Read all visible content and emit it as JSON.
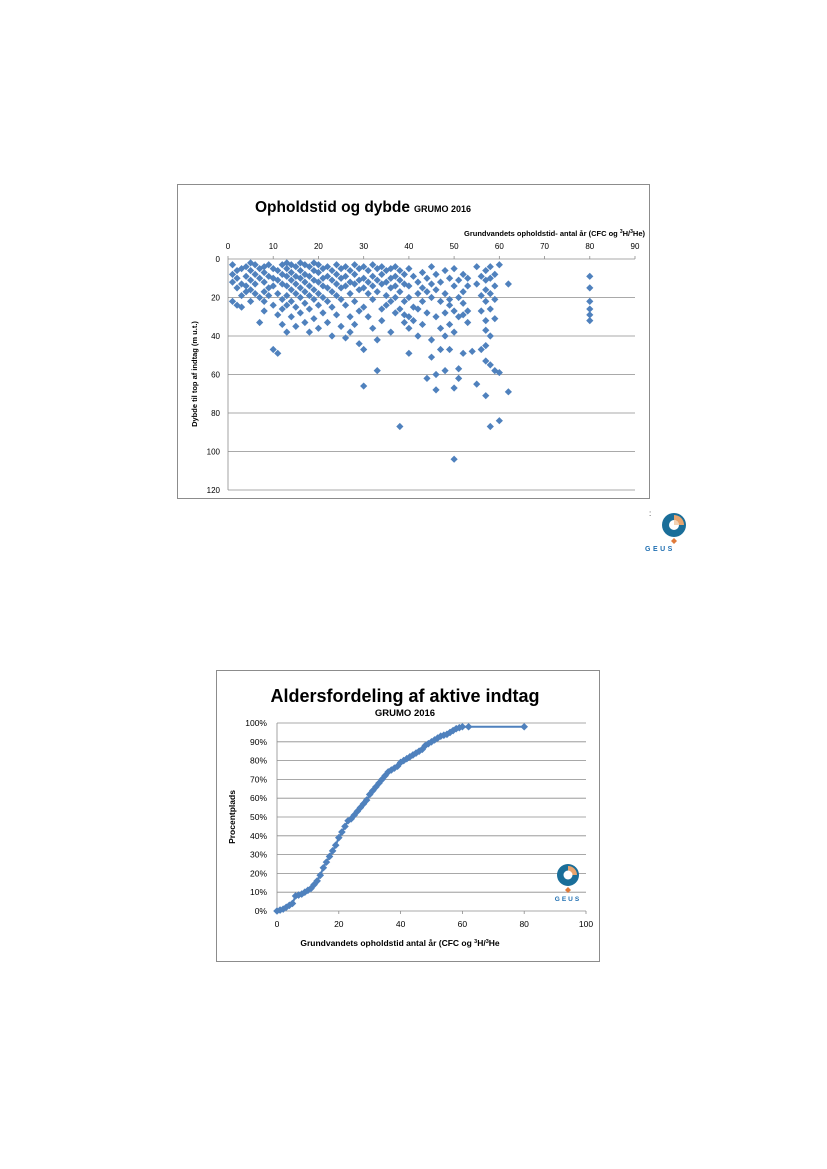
{
  "chart_data": [
    {
      "type": "scatter",
      "title": "Opholdstid og dybde",
      "title_suffix": "GRUMO 2016",
      "xlabel_prefix": "Grundvandets opholdstid- antal år (CFC og ",
      "xlabel_sup1": "3",
      "xlabel_mid": "H/",
      "xlabel_sup2": "3",
      "xlabel_suffix": "He)",
      "ylabel": "Dybde til top af indtag (m u.t.)",
      "xlim": [
        0,
        90
      ],
      "ylim": [
        0,
        120
      ],
      "y_inverted": true,
      "x_axis_position": "top",
      "xticks": [
        "0",
        "10",
        "20",
        "30",
        "40",
        "50",
        "60",
        "70",
        "80",
        "90"
      ],
      "yticks": [
        "0",
        "20",
        "40",
        "60",
        "80",
        "100",
        "120"
      ],
      "grid": "horizontal",
      "marker": "diamond",
      "color": "#4f81bd",
      "points": [
        [
          1,
          3
        ],
        [
          1,
          8
        ],
        [
          1,
          12
        ],
        [
          1,
          22
        ],
        [
          2,
          6
        ],
        [
          2,
          10
        ],
        [
          2,
          15
        ],
        [
          2,
          24
        ],
        [
          3,
          5
        ],
        [
          3,
          13
        ],
        [
          3,
          19
        ],
        [
          3,
          25
        ],
        [
          4,
          4
        ],
        [
          4,
          9
        ],
        [
          4,
          14
        ],
        [
          4,
          17
        ],
        [
          5,
          2
        ],
        [
          5,
          6
        ],
        [
          5,
          11
        ],
        [
          5,
          16
        ],
        [
          5,
          22
        ],
        [
          6,
          3
        ],
        [
          6,
          8
        ],
        [
          6,
          13
        ],
        [
          6,
          18
        ],
        [
          7,
          5
        ],
        [
          7,
          10
        ],
        [
          7,
          20
        ],
        [
          7,
          33
        ],
        [
          8,
          4
        ],
        [
          8,
          7
        ],
        [
          8,
          12
        ],
        [
          8,
          17
        ],
        [
          8,
          22
        ],
        [
          8,
          27
        ],
        [
          9,
          3
        ],
        [
          9,
          9
        ],
        [
          9,
          15
        ],
        [
          9,
          19
        ],
        [
          10,
          5
        ],
        [
          10,
          10
        ],
        [
          10,
          14
        ],
        [
          10,
          24
        ],
        [
          10,
          47
        ],
        [
          11,
          6
        ],
        [
          11,
          11
        ],
        [
          11,
          18
        ],
        [
          11,
          29
        ],
        [
          11,
          49
        ],
        [
          12,
          3
        ],
        [
          12,
          8
        ],
        [
          12,
          13
        ],
        [
          12,
          21
        ],
        [
          12,
          26
        ],
        [
          12,
          34
        ],
        [
          13,
          2
        ],
        [
          13,
          5
        ],
        [
          13,
          9
        ],
        [
          13,
          14
        ],
        [
          13,
          19
        ],
        [
          13,
          24
        ],
        [
          13,
          38
        ],
        [
          14,
          3
        ],
        [
          14,
          7
        ],
        [
          14,
          11
        ],
        [
          14,
          16
        ],
        [
          14,
          22
        ],
        [
          14,
          30
        ],
        [
          15,
          4
        ],
        [
          15,
          9
        ],
        [
          15,
          13
        ],
        [
          15,
          18
        ],
        [
          15,
          25
        ],
        [
          15,
          35
        ],
        [
          16,
          2
        ],
        [
          16,
          6
        ],
        [
          16,
          10
        ],
        [
          16,
          15
        ],
        [
          16,
          20
        ],
        [
          16,
          28
        ],
        [
          17,
          3
        ],
        [
          17,
          8
        ],
        [
          17,
          12
        ],
        [
          17,
          17
        ],
        [
          17,
          23
        ],
        [
          17,
          33
        ],
        [
          18,
          4
        ],
        [
          18,
          9
        ],
        [
          18,
          14
        ],
        [
          18,
          19
        ],
        [
          18,
          26
        ],
        [
          18,
          38
        ],
        [
          19,
          2
        ],
        [
          19,
          6
        ],
        [
          19,
          11
        ],
        [
          19,
          16
        ],
        [
          19,
          21
        ],
        [
          19,
          31
        ],
        [
          20,
          3
        ],
        [
          20,
          7
        ],
        [
          20,
          12
        ],
        [
          20,
          18
        ],
        [
          20,
          24
        ],
        [
          20,
          36
        ],
        [
          21,
          5
        ],
        [
          21,
          10
        ],
        [
          21,
          14
        ],
        [
          21,
          20
        ],
        [
          21,
          28
        ],
        [
          22,
          4
        ],
        [
          22,
          9
        ],
        [
          22,
          15
        ],
        [
          22,
          22
        ],
        [
          22,
          33
        ],
        [
          23,
          6
        ],
        [
          23,
          11
        ],
        [
          23,
          17
        ],
        [
          23,
          25
        ],
        [
          23,
          40
        ],
        [
          24,
          3
        ],
        [
          24,
          8
        ],
        [
          24,
          13
        ],
        [
          24,
          19
        ],
        [
          24,
          29
        ],
        [
          25,
          5
        ],
        [
          25,
          10
        ],
        [
          25,
          15
        ],
        [
          25,
          21
        ],
        [
          25,
          35
        ],
        [
          26,
          4
        ],
        [
          26,
          9
        ],
        [
          26,
          14
        ],
        [
          26,
          24
        ],
        [
          26,
          41
        ],
        [
          27,
          6
        ],
        [
          27,
          12
        ],
        [
          27,
          18
        ],
        [
          27,
          30
        ],
        [
          27,
          38
        ],
        [
          28,
          3
        ],
        [
          28,
          8
        ],
        [
          28,
          13
        ],
        [
          28,
          22
        ],
        [
          28,
          34
        ],
        [
          29,
          5
        ],
        [
          29,
          11
        ],
        [
          29,
          16
        ],
        [
          29,
          27
        ],
        [
          29,
          44
        ],
        [
          30,
          4
        ],
        [
          30,
          10
        ],
        [
          30,
          15
        ],
        [
          30,
          25
        ],
        [
          30,
          47
        ],
        [
          30,
          66
        ],
        [
          31,
          6
        ],
        [
          31,
          12
        ],
        [
          31,
          18
        ],
        [
          31,
          30
        ],
        [
          32,
          3
        ],
        [
          32,
          9
        ],
        [
          32,
          14
        ],
        [
          32,
          21
        ],
        [
          32,
          36
        ],
        [
          33,
          5
        ],
        [
          33,
          11
        ],
        [
          33,
          17
        ],
        [
          33,
          42
        ],
        [
          33,
          58
        ],
        [
          34,
          4
        ],
        [
          34,
          8
        ],
        [
          34,
          13
        ],
        [
          34,
          26
        ],
        [
          34,
          32
        ],
        [
          35,
          6
        ],
        [
          35,
          12
        ],
        [
          35,
          19
        ],
        [
          35,
          24
        ],
        [
          36,
          5
        ],
        [
          36,
          10
        ],
        [
          36,
          15
        ],
        [
          36,
          22
        ],
        [
          36,
          38
        ],
        [
          37,
          4
        ],
        [
          37,
          9
        ],
        [
          37,
          14
        ],
        [
          37,
          20
        ],
        [
          37,
          28
        ],
        [
          38,
          6
        ],
        [
          38,
          11
        ],
        [
          38,
          17
        ],
        [
          38,
          26
        ],
        [
          38,
          87
        ],
        [
          39,
          8
        ],
        [
          39,
          13
        ],
        [
          39,
          22
        ],
        [
          39,
          29
        ],
        [
          39,
          33
        ],
        [
          40,
          5
        ],
        [
          40,
          14
        ],
        [
          40,
          20
        ],
        [
          40,
          30
        ],
        [
          40,
          36
        ],
        [
          40,
          49
        ],
        [
          41,
          9
        ],
        [
          41,
          25
        ],
        [
          41,
          32
        ],
        [
          42,
          12
        ],
        [
          42,
          18
        ],
        [
          42,
          26
        ],
        [
          42,
          40
        ],
        [
          43,
          7
        ],
        [
          43,
          15
        ],
        [
          43,
          22
        ],
        [
          43,
          34
        ],
        [
          44,
          10
        ],
        [
          44,
          17
        ],
        [
          44,
          28
        ],
        [
          44,
          62
        ],
        [
          45,
          4
        ],
        [
          45,
          13
        ],
        [
          45,
          20
        ],
        [
          45,
          42
        ],
        [
          45,
          51
        ],
        [
          46,
          8
        ],
        [
          46,
          16
        ],
        [
          46,
          30
        ],
        [
          46,
          60
        ],
        [
          46,
          68
        ],
        [
          47,
          12
        ],
        [
          47,
          22
        ],
        [
          47,
          36
        ],
        [
          47,
          47
        ],
        [
          48,
          6
        ],
        [
          48,
          18
        ],
        [
          48,
          28
        ],
        [
          48,
          40
        ],
        [
          48,
          58
        ],
        [
          49,
          10
        ],
        [
          49,
          21
        ],
        [
          49,
          24
        ],
        [
          49,
          34
        ],
        [
          49,
          47
        ],
        [
          50,
          5
        ],
        [
          50,
          14
        ],
        [
          50,
          27
        ],
        [
          50,
          38
        ],
        [
          50,
          67
        ],
        [
          50,
          104
        ],
        [
          51,
          11
        ],
        [
          51,
          20
        ],
        [
          51,
          30
        ],
        [
          51,
          57
        ],
        [
          51,
          62
        ],
        [
          52,
          8
        ],
        [
          52,
          17
        ],
        [
          52,
          23
        ],
        [
          52,
          29
        ],
        [
          52,
          49
        ],
        [
          53,
          10
        ],
        [
          53,
          14
        ],
        [
          53,
          27
        ],
        [
          53,
          33
        ],
        [
          54,
          48
        ],
        [
          55,
          4
        ],
        [
          55,
          13
        ],
        [
          55,
          65
        ],
        [
          56,
          9
        ],
        [
          56,
          19
        ],
        [
          56,
          27
        ],
        [
          56,
          47
        ],
        [
          57,
          6
        ],
        [
          57,
          11
        ],
        [
          57,
          16
        ],
        [
          57,
          22
        ],
        [
          57,
          32
        ],
        [
          57,
          37
        ],
        [
          57,
          45
        ],
        [
          57,
          53
        ],
        [
          57,
          71
        ],
        [
          58,
          4
        ],
        [
          58,
          10
        ],
        [
          58,
          18
        ],
        [
          58,
          26
        ],
        [
          58,
          40
        ],
        [
          58,
          55
        ],
        [
          58,
          87
        ],
        [
          59,
          8
        ],
        [
          59,
          14
        ],
        [
          59,
          21
        ],
        [
          59,
          31
        ],
        [
          59,
          58
        ],
        [
          60,
          3
        ],
        [
          60,
          59
        ],
        [
          60,
          84
        ],
        [
          62,
          13
        ],
        [
          62,
          69
        ],
        [
          80,
          9
        ],
        [
          80,
          15
        ],
        [
          80,
          22
        ],
        [
          80,
          26
        ],
        [
          80,
          29
        ],
        [
          80,
          32
        ]
      ]
    },
    {
      "type": "line",
      "title": "Aldersfordeling af aktive indtag",
      "subtitle": "GRUMO 2016",
      "xlabel_prefix": "Grundvandets opholdstid antal år (CFC og ",
      "xlabel_sup1": "3",
      "xlabel_mid": "H/",
      "xlabel_sup2": "3",
      "xlabel_suffix": "He",
      "ylabel": "Procentplads",
      "xlim": [
        0,
        100
      ],
      "ylim": [
        0,
        100
      ],
      "xticks": [
        "0",
        "20",
        "40",
        "60",
        "80",
        "100"
      ],
      "yticks": [
        "0%",
        "10%",
        "20%",
        "30%",
        "40%",
        "50%",
        "60%",
        "70%",
        "80%",
        "90%",
        "100%"
      ],
      "grid": "horizontal",
      "marker": "diamond",
      "color": "#4f81bd",
      "x": [
        0,
        1,
        2,
        3,
        4,
        5,
        6,
        7,
        8,
        9,
        10,
        11,
        12,
        13,
        14,
        15,
        16,
        17,
        18,
        19,
        20,
        21,
        22,
        23,
        24,
        25,
        26,
        27,
        28,
        29,
        30,
        31,
        32,
        33,
        34,
        35,
        36,
        37,
        38,
        39,
        40,
        41,
        42,
        43,
        44,
        45,
        46,
        47,
        48,
        49,
        50,
        51,
        52,
        53,
        54,
        55,
        56,
        57,
        58,
        59,
        60,
        62,
        80
      ],
      "y": [
        0,
        0.5,
        1,
        2,
        3,
        4,
        8,
        8.5,
        9,
        10,
        11,
        12,
        14,
        16,
        19,
        23,
        26,
        29,
        32,
        35,
        39,
        42,
        45,
        48,
        49,
        51,
        53,
        55,
        57,
        59,
        62,
        64,
        66,
        68,
        70,
        72,
        74,
        75,
        76,
        77,
        79,
        80,
        81,
        82,
        83,
        84,
        85,
        86,
        88,
        89,
        90,
        91,
        92,
        93,
        93.5,
        94,
        95,
        96,
        97,
        97.5,
        98,
        98,
        98
      ]
    }
  ],
  "logo": {
    "text": "GEUS",
    "colon": ":"
  }
}
